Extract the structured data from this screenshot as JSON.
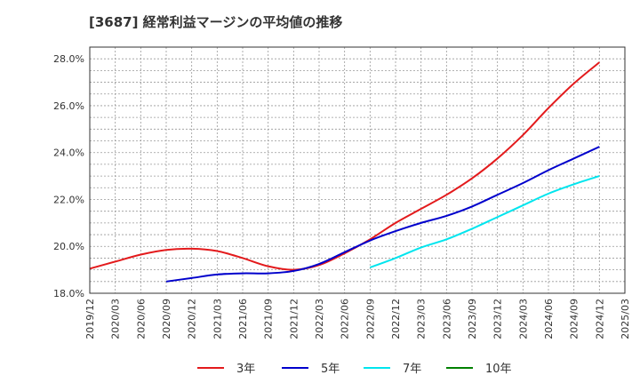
{
  "chart_data": {
    "type": "line",
    "title": "[3687]  経常利益マージンの平均値の推移",
    "xlabel": "",
    "ylabel": "",
    "x_ticks": [
      "2019/12",
      "2020/03",
      "2020/06",
      "2020/09",
      "2020/12",
      "2021/03",
      "2021/06",
      "2021/09",
      "2021/12",
      "2022/03",
      "2022/06",
      "2022/09",
      "2022/12",
      "2023/03",
      "2023/06",
      "2023/09",
      "2023/12",
      "2024/03",
      "2024/06",
      "2024/09",
      "2024/12",
      "2025/03"
    ],
    "y_ticks": [
      "18.0%",
      "20.0%",
      "22.0%",
      "24.0%",
      "26.0%",
      "28.0%"
    ],
    "ylim": [
      18.0,
      28.5
    ],
    "grid": true,
    "legend_position": "bottom",
    "series": [
      {
        "name": "3年",
        "color": "#e31a1c",
        "points": [
          [
            "2019/12",
            19.05
          ],
          [
            "2020/03",
            19.35
          ],
          [
            "2020/06",
            19.65
          ],
          [
            "2020/09",
            19.85
          ],
          [
            "2020/12",
            19.9
          ],
          [
            "2021/03",
            19.8
          ],
          [
            "2021/06",
            19.5
          ],
          [
            "2021/09",
            19.15
          ],
          [
            "2021/12",
            19.0
          ],
          [
            "2022/03",
            19.2
          ],
          [
            "2022/06",
            19.7
          ],
          [
            "2022/09",
            20.3
          ],
          [
            "2022/12",
            21.0
          ],
          [
            "2023/03",
            21.6
          ],
          [
            "2023/06",
            22.2
          ],
          [
            "2023/09",
            22.9
          ],
          [
            "2023/12",
            23.75
          ],
          [
            "2024/03",
            24.75
          ],
          [
            "2024/06",
            25.9
          ],
          [
            "2024/09",
            26.95
          ],
          [
            "2024/12",
            27.85
          ]
        ]
      },
      {
        "name": "5年",
        "color": "#0000cc",
        "points": [
          [
            "2020/09",
            18.5
          ],
          [
            "2020/12",
            18.65
          ],
          [
            "2021/03",
            18.8
          ],
          [
            "2021/06",
            18.85
          ],
          [
            "2021/09",
            18.85
          ],
          [
            "2021/12",
            18.95
          ],
          [
            "2022/03",
            19.25
          ],
          [
            "2022/06",
            19.75
          ],
          [
            "2022/09",
            20.25
          ],
          [
            "2022/12",
            20.65
          ],
          [
            "2023/03",
            21.0
          ],
          [
            "2023/06",
            21.3
          ],
          [
            "2023/09",
            21.7
          ],
          [
            "2023/12",
            22.2
          ],
          [
            "2024/03",
            22.7
          ],
          [
            "2024/06",
            23.25
          ],
          [
            "2024/09",
            23.75
          ],
          [
            "2024/12",
            24.25
          ]
        ]
      },
      {
        "name": "7年",
        "color": "#00e5ee",
        "points": [
          [
            "2022/09",
            19.1
          ],
          [
            "2022/12",
            19.5
          ],
          [
            "2023/03",
            19.95
          ],
          [
            "2023/06",
            20.3
          ],
          [
            "2023/09",
            20.75
          ],
          [
            "2023/12",
            21.25
          ],
          [
            "2024/03",
            21.75
          ],
          [
            "2024/06",
            22.25
          ],
          [
            "2024/09",
            22.65
          ],
          [
            "2024/12",
            23.0
          ]
        ]
      },
      {
        "name": "10年",
        "color": "#008000",
        "points": []
      }
    ]
  }
}
